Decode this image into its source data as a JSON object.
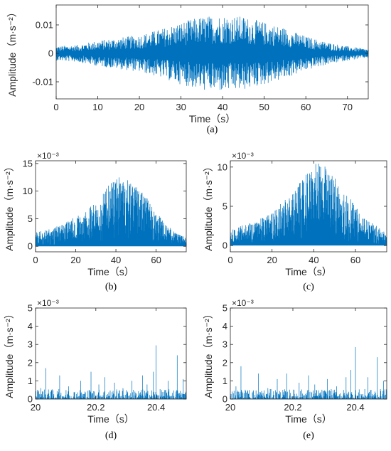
{
  "colors": {
    "series": "#0072BD",
    "axes": "#262626",
    "background": "#ffffff"
  },
  "chart_data": [
    {
      "panel": "a",
      "caption": "(a)",
      "type": "line",
      "xlabel": "Time（s）",
      "ylabel": "Amplitude（m·s⁻²）",
      "exponent": "",
      "xlim": [
        0,
        75
      ],
      "ylim": [
        -0.016,
        0.017
      ],
      "xticks": [
        0,
        10,
        20,
        30,
        40,
        50,
        60,
        70
      ],
      "xtick_labels": [
        "0",
        "10",
        "20",
        "30",
        "40",
        "50",
        "60",
        "70"
      ],
      "yticks": [
        -0.01,
        0,
        0.01
      ],
      "ytick_labels": [
        "-0.01",
        "0",
        "0.01"
      ],
      "envelope": {
        "x": [
          0,
          5,
          10,
          15,
          20,
          25,
          30,
          35,
          40,
          45,
          50,
          55,
          60,
          65,
          70,
          75
        ],
        "y": [
          0.0025,
          0.003,
          0.0045,
          0.0055,
          0.0065,
          0.0085,
          0.011,
          0.013,
          0.0135,
          0.013,
          0.011,
          0.009,
          0.006,
          0.004,
          0.0025,
          0.0015
        ]
      },
      "signal": "bipolar"
    },
    {
      "panel": "b",
      "caption": "(b)",
      "type": "line",
      "xlabel": "Time（s）",
      "ylabel": "Amplitude（m·s⁻²）",
      "exponent": "×10⁻³",
      "xlim": [
        0,
        75
      ],
      "ylim": [
        -1,
        15.5
      ],
      "xticks": [
        0,
        20,
        40,
        60
      ],
      "xtick_labels": [
        "0",
        "20",
        "40",
        "60"
      ],
      "yticks": [
        0,
        5,
        10,
        15
      ],
      "ytick_labels": [
        "0",
        "5",
        "10",
        "15"
      ],
      "envelope": {
        "x": [
          0,
          5,
          10,
          15,
          20,
          25,
          30,
          35,
          40,
          45,
          50,
          55,
          60,
          65,
          70,
          75
        ],
        "y": [
          2.5,
          3,
          3.5,
          4.5,
          5.5,
          6.5,
          8,
          10.5,
          12.5,
          12.5,
          11,
          9,
          6.5,
          4,
          2.5,
          1.5
        ]
      },
      "signal": "positive"
    },
    {
      "panel": "c",
      "caption": "(c)",
      "type": "line",
      "xlabel": "Time（s）",
      "ylabel": "Amplitude（m·s⁻²）",
      "exponent": "×10⁻³",
      "xlim": [
        0,
        75
      ],
      "ylim": [
        -0.8,
        10.8
      ],
      "xticks": [
        0,
        20,
        40,
        60
      ],
      "xtick_labels": [
        "0",
        "20",
        "40",
        "60"
      ],
      "yticks": [
        0,
        5,
        10
      ],
      "ytick_labels": [
        "0",
        "5",
        "10"
      ],
      "envelope": {
        "x": [
          0,
          5,
          10,
          15,
          20,
          25,
          30,
          35,
          40,
          45,
          50,
          55,
          60,
          65,
          70,
          75
        ],
        "y": [
          2,
          2.5,
          3,
          3.5,
          4.5,
          5.5,
          7,
          8.5,
          10.5,
          10.5,
          9,
          7,
          5,
          3.5,
          2.5,
          1.5
        ]
      },
      "signal": "positive"
    },
    {
      "panel": "d",
      "caption": "(d)",
      "type": "line",
      "xlabel": "Time（s）",
      "ylabel": "Amplitude（m·s⁻²）",
      "exponent": "×10⁻³",
      "xlim": [
        20,
        20.5
      ],
      "ylim": [
        0,
        5
      ],
      "xticks": [
        20,
        20.2,
        20.4
      ],
      "xtick_labels": [
        "20",
        "20.2",
        "20.4"
      ],
      "yticks": [
        0,
        1,
        2,
        3,
        4,
        5
      ],
      "ytick_labels": [
        "0",
        "1",
        "2",
        "3",
        "4",
        "5"
      ],
      "spikes": [
        {
          "x": 20.018,
          "y": 0.6
        },
        {
          "x": 20.034,
          "y": 1.7
        },
        {
          "x": 20.05,
          "y": 0.4
        },
        {
          "x": 20.08,
          "y": 1.3
        },
        {
          "x": 20.11,
          "y": 0.7
        },
        {
          "x": 20.15,
          "y": 1.0
        },
        {
          "x": 20.184,
          "y": 1.5
        },
        {
          "x": 20.21,
          "y": 0.8
        },
        {
          "x": 20.23,
          "y": 1.2
        },
        {
          "x": 20.262,
          "y": 0.9
        },
        {
          "x": 20.29,
          "y": 0.6
        },
        {
          "x": 20.32,
          "y": 1.0
        },
        {
          "x": 20.355,
          "y": 1.3
        },
        {
          "x": 20.37,
          "y": 0.8
        },
        {
          "x": 20.391,
          "y": 1.5
        },
        {
          "x": 20.4,
          "y": 2.95
        },
        {
          "x": 20.44,
          "y": 1.0
        },
        {
          "x": 20.47,
          "y": 2.4
        },
        {
          "x": 20.49,
          "y": 1.1
        }
      ],
      "signal": "spikes"
    },
    {
      "panel": "e",
      "caption": "(e)",
      "type": "line",
      "xlabel": "Time（s）",
      "ylabel": "Amplitude（m·s⁻²）",
      "exponent": "×10⁻³",
      "xlim": [
        20,
        20.5
      ],
      "ylim": [
        0,
        5
      ],
      "xticks": [
        20,
        20.2,
        20.4
      ],
      "xtick_labels": [
        "20",
        "20.2",
        "20.4"
      ],
      "yticks": [
        0,
        1,
        2,
        3,
        4,
        5
      ],
      "ytick_labels": [
        "0",
        "1",
        "2",
        "3",
        "4",
        "5"
      ],
      "spikes": [
        {
          "x": 20.018,
          "y": 0.7
        },
        {
          "x": 20.034,
          "y": 1.8
        },
        {
          "x": 20.06,
          "y": 0.5
        },
        {
          "x": 20.09,
          "y": 1.4
        },
        {
          "x": 20.12,
          "y": 0.6
        },
        {
          "x": 20.15,
          "y": 1.1
        },
        {
          "x": 20.18,
          "y": 1.4
        },
        {
          "x": 20.22,
          "y": 0.9
        },
        {
          "x": 20.25,
          "y": 1.3
        },
        {
          "x": 20.27,
          "y": 0.8
        },
        {
          "x": 20.31,
          "y": 1.1
        },
        {
          "x": 20.34,
          "y": 0.7
        },
        {
          "x": 20.37,
          "y": 1.2
        },
        {
          "x": 20.385,
          "y": 1.6
        },
        {
          "x": 20.4,
          "y": 2.85
        },
        {
          "x": 20.44,
          "y": 1.2
        },
        {
          "x": 20.47,
          "y": 2.3
        },
        {
          "x": 20.49,
          "y": 1.0
        }
      ],
      "signal": "spikes"
    }
  ]
}
